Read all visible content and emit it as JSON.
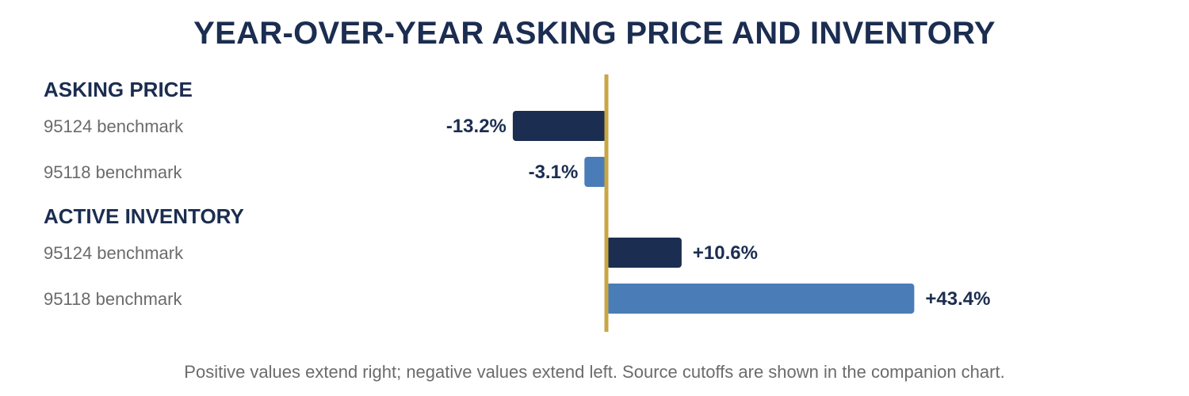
{
  "title": "YEAR-OVER-YEAR ASKING PRICE AND INVENTORY",
  "footnote": "Positive values extend right; negative values extend left. Source cutoffs are shown in the companion chart.",
  "colors": {
    "title": "#1b2d50",
    "series_95124": "#1b2d50",
    "series_95118": "#4a7db7",
    "zero_line": "#c9a646",
    "row_label": "#6b6b6b"
  },
  "chart_data": {
    "type": "bar",
    "orientation": "horizontal",
    "units": "%",
    "xlim": [
      -20,
      52
    ],
    "grid": false,
    "groups": [
      {
        "name": "ASKING PRICE",
        "rows": [
          {
            "label": "95124 benchmark",
            "value": -13.2,
            "value_label": "-13.2%",
            "series": "95124"
          },
          {
            "label": "95118 benchmark",
            "value": -3.1,
            "value_label": "-3.1%",
            "series": "95118"
          }
        ]
      },
      {
        "name": "ACTIVE INVENTORY",
        "rows": [
          {
            "label": "95124 benchmark",
            "value": 10.6,
            "value_label": "+10.6%",
            "series": "95124"
          },
          {
            "label": "95118 benchmark",
            "value": 43.4,
            "value_label": "+43.4%",
            "series": "95118"
          }
        ]
      }
    ]
  }
}
